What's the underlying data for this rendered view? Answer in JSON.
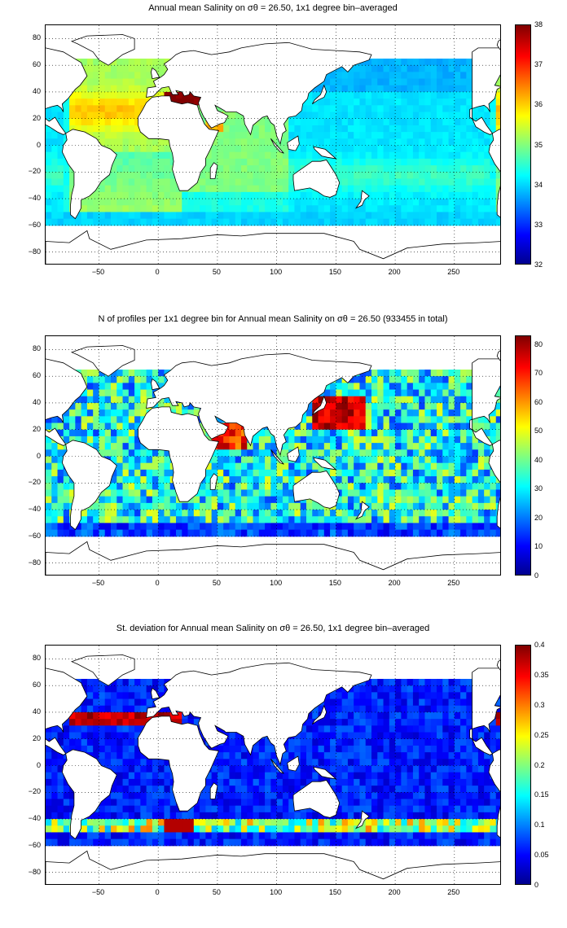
{
  "panels": [
    {
      "id": "salinity",
      "title": "Annual mean Salinity on σθ = 26.50, 1x1 degree bin–averaged",
      "colorbar": {
        "min": 32,
        "max": 38,
        "ticks": [
          "38",
          "37",
          "36",
          "35",
          "34",
          "33",
          "32"
        ]
      },
      "dominant_colors": [
        "#ff8c1a",
        "#e8e03a",
        "#2ee6e0",
        "#7a0000"
      ]
    },
    {
      "id": "profiles",
      "title": "N of profiles per 1x1 degree bin for Annual mean Salinity on σθ = 26.50 (933455 in total)",
      "colorbar": {
        "min": 0,
        "max": 83,
        "ticks": [
          "80",
          "70",
          "60",
          "50",
          "40",
          "30",
          "20",
          "10",
          "0"
        ]
      },
      "dominant_colors": [
        "#2a6cf0",
        "#42d6c8",
        "#d9e23a",
        "#8b0000"
      ]
    },
    {
      "id": "stdev",
      "title": "St. deviation for Annual mean Salinity on σθ = 26.50, 1x1 degree bin–averaged",
      "colorbar": {
        "min": 0,
        "max": 0.4,
        "ticks": [
          "0.4",
          "0.35",
          "0.3",
          "0.25",
          "0.2",
          "0.15",
          "0.1",
          "0.05",
          "0"
        ]
      },
      "dominant_colors": [
        "#0a2ad0",
        "#1f6cf0",
        "#32c8e8",
        "#8b0000"
      ]
    }
  ],
  "axes": {
    "y_ticks": [
      "80",
      "60",
      "40",
      "20",
      "0",
      "−20",
      "−40",
      "−60",
      "−80"
    ],
    "x_ticks": [
      "−50",
      "0",
      "50",
      "100",
      "150",
      "200",
      "250"
    ],
    "lon_range": [
      -95,
      290
    ],
    "lat_range": [
      -90,
      90
    ],
    "grid": "dotted"
  },
  "colormap": "jet"
}
